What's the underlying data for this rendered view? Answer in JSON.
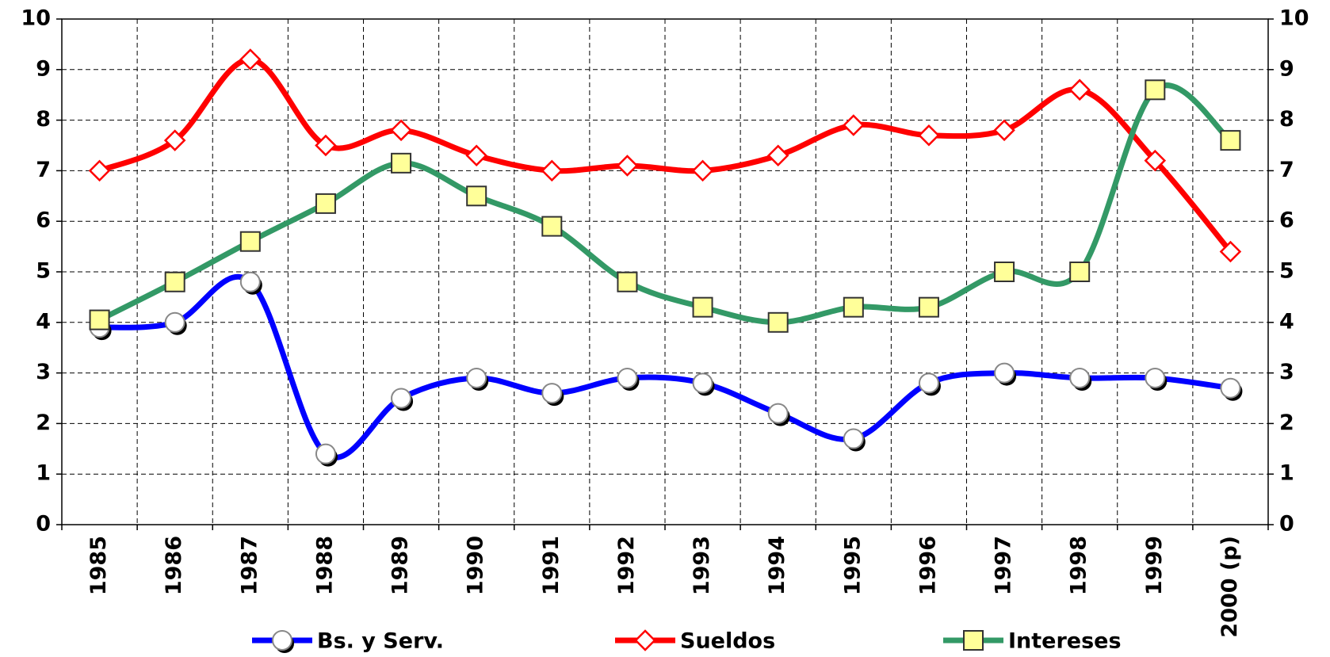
{
  "chart_data": {
    "type": "line",
    "categories": [
      "1985",
      "1986",
      "1987",
      "1988",
      "1989",
      "1990",
      "1991",
      "1992",
      "1993",
      "1994",
      "1995",
      "1996",
      "1997",
      "1998",
      "1999",
      "2000 (p)"
    ],
    "series": [
      {
        "name": "Bs. y Serv.",
        "color": "#0000ff",
        "marker": "circle",
        "values": [
          3.9,
          4.0,
          4.8,
          1.4,
          2.5,
          2.9,
          2.6,
          2.9,
          2.8,
          2.2,
          1.7,
          2.8,
          3.0,
          2.9,
          2.9,
          2.7
        ]
      },
      {
        "name": "Sueldos",
        "color": "#ff0000",
        "marker": "diamond",
        "values": [
          7.0,
          7.6,
          9.2,
          7.5,
          7.8,
          7.3,
          7.0,
          7.1,
          7.0,
          7.3,
          7.9,
          7.7,
          7.8,
          8.6,
          7.2,
          5.4
        ]
      },
      {
        "name": "Intereses",
        "color": "#339966",
        "marker": "square",
        "values": [
          4.05,
          4.8,
          5.6,
          6.35,
          7.15,
          6.5,
          5.9,
          4.8,
          4.3,
          4.0,
          4.3,
          4.3,
          5.0,
          5.0,
          8.6,
          7.6
        ]
      }
    ],
    "ylim": [
      0,
      10
    ],
    "yticks": [
      0,
      1,
      2,
      3,
      4,
      5,
      6,
      7,
      8,
      9,
      10
    ],
    "y2lim": [
      0,
      10
    ],
    "y2ticks": [
      0,
      1,
      2,
      3,
      4,
      5,
      6,
      7,
      8,
      9,
      10
    ],
    "grid": true,
    "legend": "bottom"
  }
}
